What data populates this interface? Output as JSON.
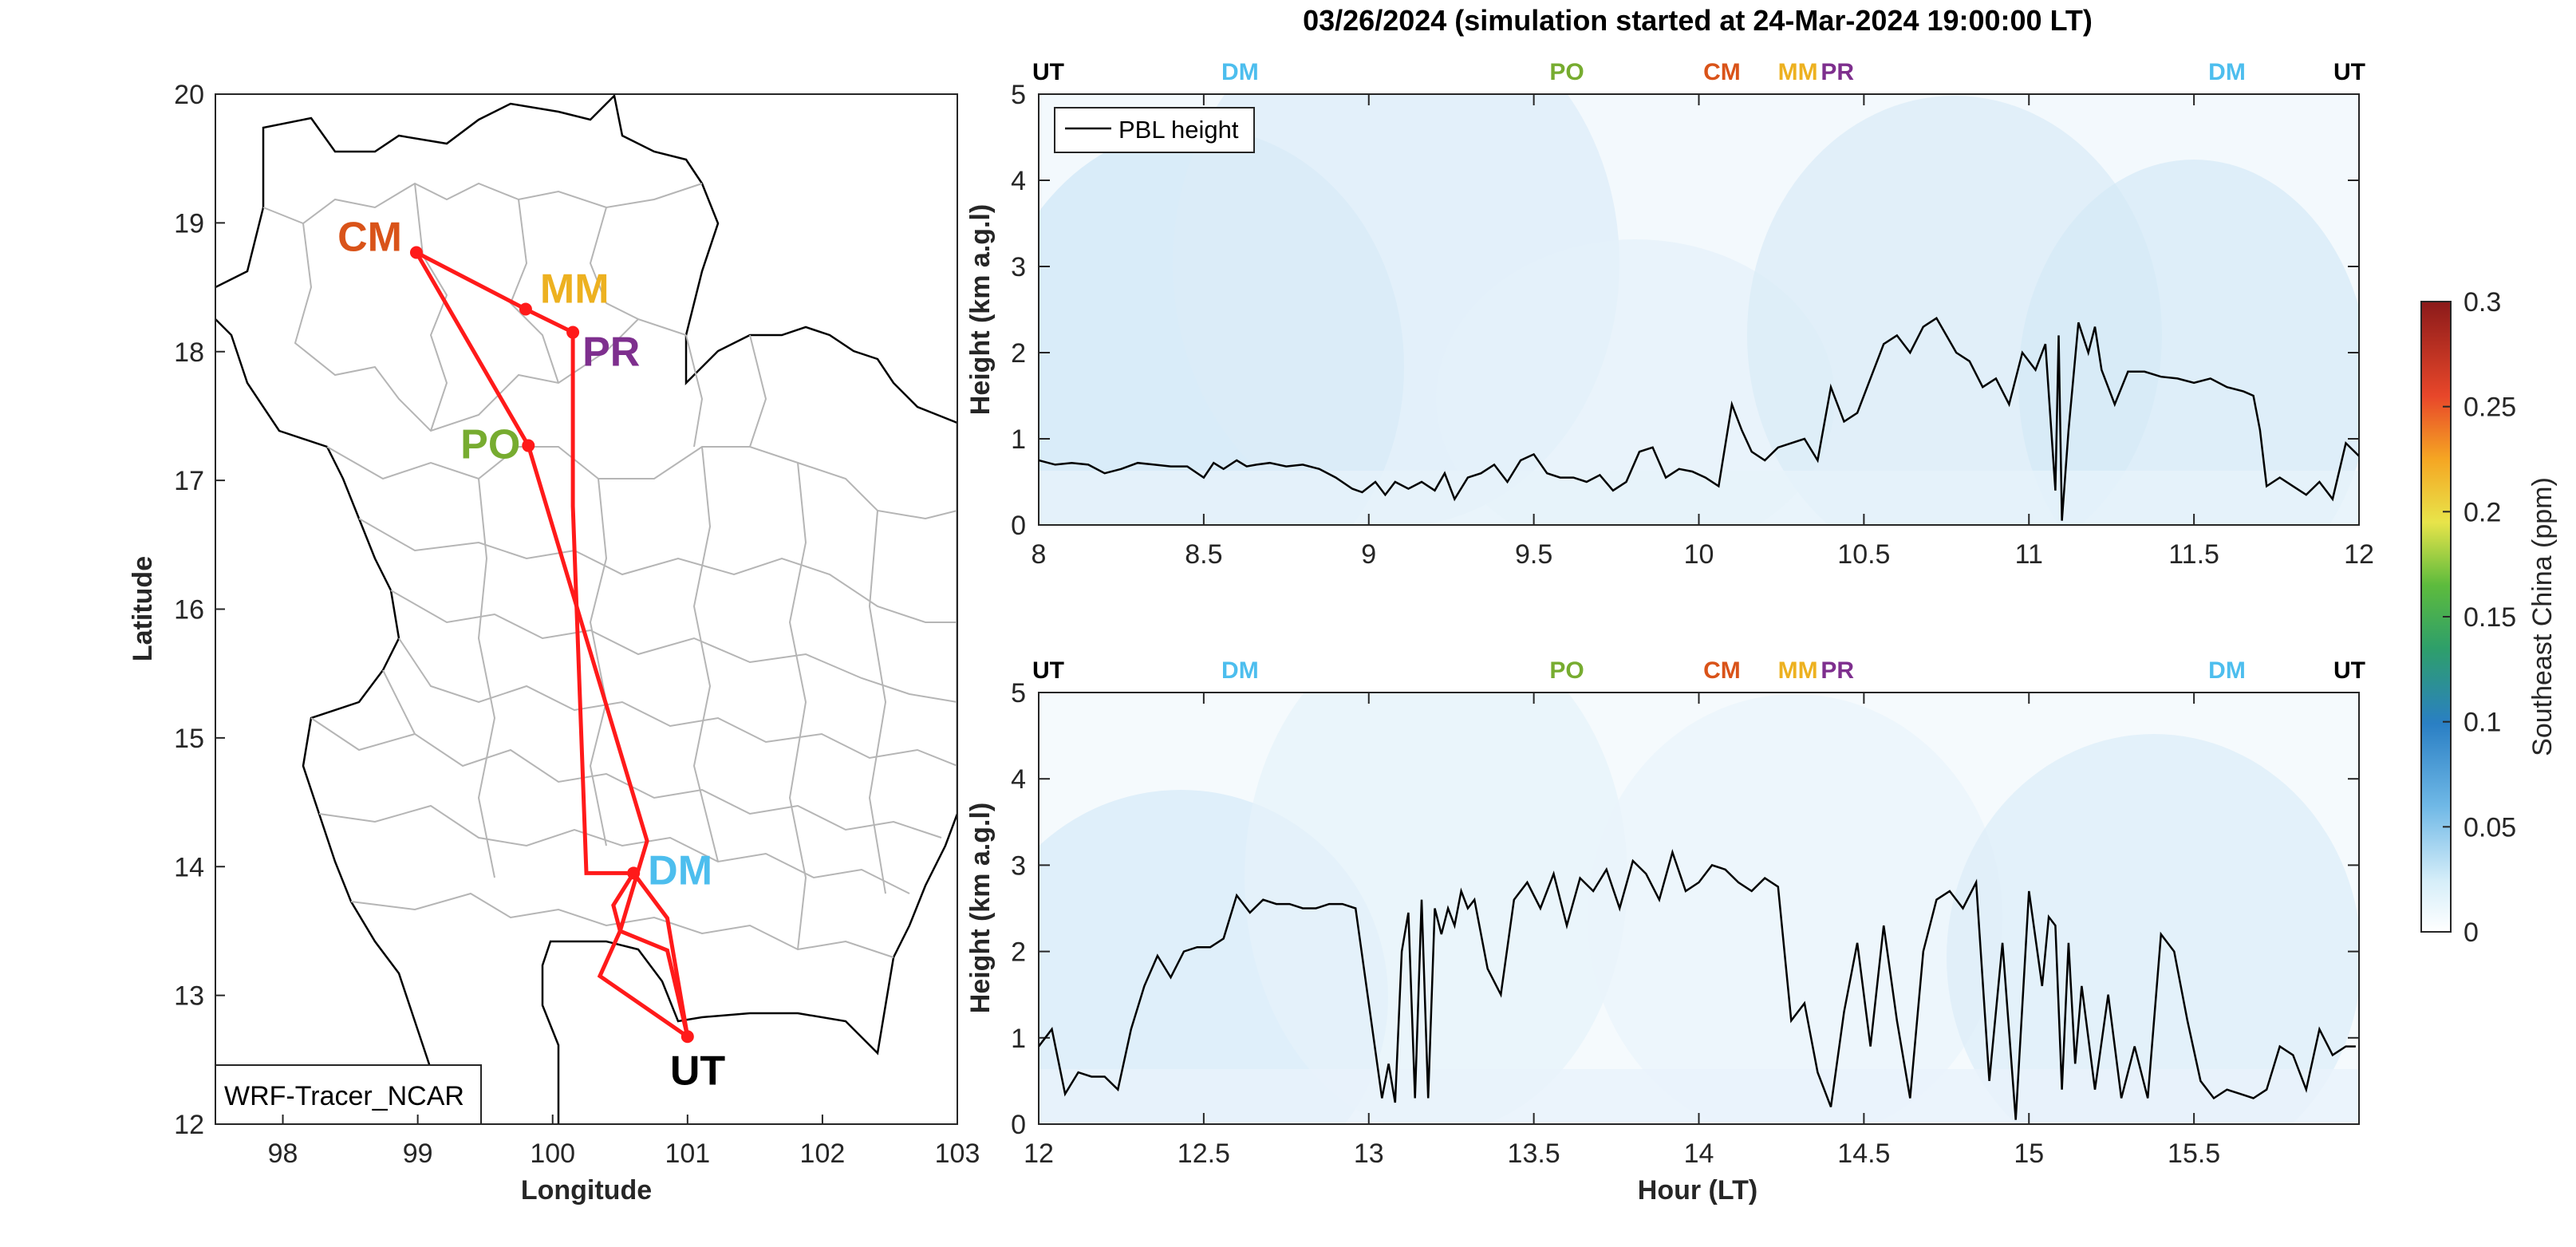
{
  "title": "03/26/2024 (simulation started at 24-Mar-2024 19:00:00 LT)",
  "colors": {
    "CM": "#D95319",
    "MM": "#EDB120",
    "PR": "#7E2F8E",
    "PO": "#77AC30",
    "DM": "#4DBEEE",
    "UT": "#000000",
    "route": "#ff1a1a",
    "pbl": "#000000"
  },
  "map": {
    "xlabel": "Longitude",
    "ylabel": "Latitude",
    "xticks": [
      "98",
      "99",
      "100",
      "101",
      "102",
      "103"
    ],
    "yticks": [
      "12",
      "13",
      "14",
      "15",
      "16",
      "17",
      "18",
      "19",
      "20"
    ],
    "xlim": [
      97.5,
      103
    ],
    "ylim": [
      12,
      20
    ],
    "model_label": "WRF-Tracer_NCAR",
    "stations": [
      {
        "code": "CM",
        "lon": 98.99,
        "lat": 18.77
      },
      {
        "code": "MM",
        "lon": 99.8,
        "lat": 18.33
      },
      {
        "code": "PR",
        "lon": 100.15,
        "lat": 18.15
      },
      {
        "code": "PO",
        "lon": 99.82,
        "lat": 17.27
      },
      {
        "code": "DM",
        "lon": 100.6,
        "lat": 13.95
      },
      {
        "code": "UT",
        "lon": 101.0,
        "lat": 12.68
      }
    ]
  },
  "colorbar": {
    "label": "Southeast China (ppm)",
    "ticks": [
      "0",
      "0.05",
      "0.1",
      "0.15",
      "0.2",
      "0.25",
      "0.3"
    ]
  },
  "panel_top_labels": [
    "UT",
    "DM",
    "PO",
    "CM",
    "MM",
    "PR",
    "DM",
    "UT"
  ],
  "panel_bottom_labels": [
    "UT",
    "DM",
    "PO",
    "CM",
    "MM",
    "PR",
    "DM",
    "UT"
  ],
  "panel_top_xticks": [
    "8",
    "8.5",
    "9",
    "9.5",
    "10",
    "10.5",
    "11",
    "11.5",
    "12"
  ],
  "panel_bottom_xticks": [
    "12",
    "12.5",
    "13",
    "13.5",
    "14",
    "14.5",
    "15",
    "15.5"
  ],
  "yticks": [
    "0",
    "1",
    "2",
    "3",
    "4",
    "5"
  ],
  "ylabel": "Height (km a.g.l)",
  "bottom_xlabel": "Hour (LT)",
  "legend_label": "PBL height",
  "chart_data": [
    {
      "type": "line",
      "title": "03/26/2024 (simulation started at 24-Mar-2024 19:00:00 LT)",
      "xlabel": "",
      "ylabel": "Height (km a.g.l)",
      "xlim": [
        8,
        12
      ],
      "ylim": [
        0,
        5
      ],
      "legend": "top-left",
      "station_labels": [
        {
          "code": "UT",
          "x": 8.0
        },
        {
          "code": "DM",
          "x": 8.61
        },
        {
          "code": "PO",
          "x": 9.6
        },
        {
          "code": "CM",
          "x": 10.07
        },
        {
          "code": "MM",
          "x": 10.3
        },
        {
          "code": "PR",
          "x": 10.42
        },
        {
          "code": "DM",
          "x": 11.6
        },
        {
          "code": "UT",
          "x": 12.0
        }
      ],
      "series": [
        {
          "name": "PBL height",
          "x": [
            8.0,
            8.05,
            8.1,
            8.15,
            8.2,
            8.25,
            8.3,
            8.35,
            8.4,
            8.45,
            8.5,
            8.53,
            8.56,
            8.6,
            8.63,
            8.66,
            8.7,
            8.75,
            8.8,
            8.85,
            8.9,
            8.95,
            8.98,
            9.02,
            9.05,
            9.08,
            9.12,
            9.16,
            9.2,
            9.23,
            9.26,
            9.3,
            9.34,
            9.38,
            9.42,
            9.46,
            9.5,
            9.54,
            9.58,
            9.62,
            9.66,
            9.7,
            9.74,
            9.78,
            9.82,
            9.86,
            9.9,
            9.94,
            9.98,
            10.02,
            10.06,
            10.1,
            10.13,
            10.16,
            10.2,
            10.24,
            10.28,
            10.32,
            10.36,
            10.4,
            10.44,
            10.48,
            10.52,
            10.56,
            10.6,
            10.64,
            10.68,
            10.72,
            10.75,
            10.78,
            10.82,
            10.86,
            10.9,
            10.94,
            10.98,
            11.02,
            11.05,
            11.08,
            11.09,
            11.1,
            11.12,
            11.15,
            11.18,
            11.2,
            11.22,
            11.26,
            11.3,
            11.35,
            11.4,
            11.45,
            11.5,
            11.55,
            11.6,
            11.65,
            11.68,
            11.7,
            11.72,
            11.76,
            11.8,
            11.84,
            11.88,
            11.92,
            11.96,
            12.0
          ],
          "y": [
            0.75,
            0.7,
            0.72,
            0.7,
            0.6,
            0.65,
            0.72,
            0.7,
            0.68,
            0.68,
            0.55,
            0.72,
            0.65,
            0.75,
            0.68,
            0.7,
            0.72,
            0.68,
            0.7,
            0.65,
            0.55,
            0.42,
            0.38,
            0.5,
            0.35,
            0.5,
            0.42,
            0.5,
            0.4,
            0.6,
            0.3,
            0.55,
            0.6,
            0.7,
            0.5,
            0.75,
            0.82,
            0.6,
            0.55,
            0.55,
            0.5,
            0.58,
            0.4,
            0.5,
            0.85,
            0.9,
            0.55,
            0.65,
            0.62,
            0.55,
            0.45,
            1.4,
            1.1,
            0.85,
            0.75,
            0.9,
            0.95,
            1.0,
            0.75,
            1.6,
            1.2,
            1.3,
            1.7,
            2.1,
            2.2,
            2.0,
            2.3,
            2.4,
            2.2,
            2.0,
            1.9,
            1.6,
            1.7,
            1.4,
            2.0,
            1.8,
            2.1,
            0.4,
            2.2,
            0.05,
            1.1,
            2.35,
            2.0,
            2.3,
            1.8,
            1.4,
            1.78,
            1.78,
            1.72,
            1.7,
            1.65,
            1.7,
            1.6,
            1.55,
            1.5,
            1.1,
            0.45,
            0.55,
            0.45,
            0.35,
            0.5,
            0.3,
            0.95,
            0.8
          ]
        }
      ]
    },
    {
      "type": "line",
      "title": "",
      "xlabel": "Hour (LT)",
      "ylabel": "Height (km a.g.l)",
      "xlim": [
        12,
        16
      ],
      "ylim": [
        0,
        5
      ],
      "station_labels": [
        {
          "code": "UT",
          "x": 12.0
        },
        {
          "code": "DM",
          "x": 12.61
        },
        {
          "code": "PO",
          "x": 13.6
        },
        {
          "code": "CM",
          "x": 14.07
        },
        {
          "code": "MM",
          "x": 14.3
        },
        {
          "code": "PR",
          "x": 14.42
        },
        {
          "code": "DM",
          "x": 15.6
        },
        {
          "code": "UT",
          "x": 16.0
        }
      ],
      "series": [
        {
          "name": "PBL height",
          "x": [
            12.0,
            12.04,
            12.08,
            12.12,
            12.16,
            12.2,
            12.24,
            12.28,
            12.32,
            12.36,
            12.4,
            12.44,
            12.48,
            12.52,
            12.56,
            12.6,
            12.64,
            12.68,
            12.72,
            12.76,
            12.8,
            12.84,
            12.88,
            12.92,
            12.96,
            13.04,
            13.06,
            13.08,
            13.1,
            13.12,
            13.14,
            13.16,
            13.18,
            13.2,
            13.22,
            13.24,
            13.26,
            13.28,
            13.3,
            13.32,
            13.36,
            13.4,
            13.44,
            13.48,
            13.52,
            13.56,
            13.6,
            13.64,
            13.68,
            13.72,
            13.76,
            13.8,
            13.84,
            13.88,
            13.92,
            13.96,
            14.0,
            14.04,
            14.08,
            14.12,
            14.16,
            14.2,
            14.24,
            14.28,
            14.32,
            14.36,
            14.4,
            14.44,
            14.48,
            14.52,
            14.56,
            14.6,
            14.64,
            14.68,
            14.72,
            14.76,
            14.8,
            14.84,
            14.88,
            14.92,
            14.96,
            15.0,
            15.04,
            15.06,
            15.08,
            15.1,
            15.12,
            15.14,
            15.16,
            15.2,
            15.24,
            15.28,
            15.32,
            15.36,
            15.4,
            15.44,
            15.48,
            15.52,
            15.56,
            15.6,
            15.64,
            15.68,
            15.72,
            15.76,
            15.8,
            15.84,
            15.88,
            15.92,
            15.96,
            15.99
          ],
          "y": [
            0.9,
            1.1,
            0.35,
            0.6,
            0.55,
            0.55,
            0.4,
            1.1,
            1.6,
            1.95,
            1.7,
            2.0,
            2.05,
            2.05,
            2.15,
            2.65,
            2.45,
            2.6,
            2.55,
            2.55,
            2.5,
            2.5,
            2.55,
            2.55,
            2.5,
            0.3,
            0.7,
            0.25,
            2.0,
            2.45,
            0.3,
            2.6,
            0.3,
            2.5,
            2.2,
            2.5,
            2.3,
            2.7,
            2.5,
            2.6,
            1.8,
            1.5,
            2.6,
            2.8,
            2.5,
            2.9,
            2.3,
            2.85,
            2.7,
            2.95,
            2.5,
            3.05,
            2.9,
            2.6,
            3.15,
            2.7,
            2.8,
            3.0,
            2.95,
            2.8,
            2.7,
            2.85,
            2.75,
            1.2,
            1.4,
            0.6,
            0.2,
            1.3,
            2.1,
            0.9,
            2.3,
            1.2,
            0.3,
            2.0,
            2.6,
            2.7,
            2.5,
            2.8,
            0.5,
            2.1,
            0.05,
            2.7,
            1.6,
            2.4,
            2.3,
            0.4,
            2.1,
            0.7,
            1.6,
            0.4,
            1.5,
            0.3,
            0.9,
            0.3,
            2.2,
            2.0,
            1.2,
            0.5,
            0.3,
            0.4,
            0.35,
            0.3,
            0.4,
            0.9,
            0.8,
            0.4,
            1.1,
            0.8,
            0.9,
            0.9
          ]
        }
      ]
    }
  ]
}
